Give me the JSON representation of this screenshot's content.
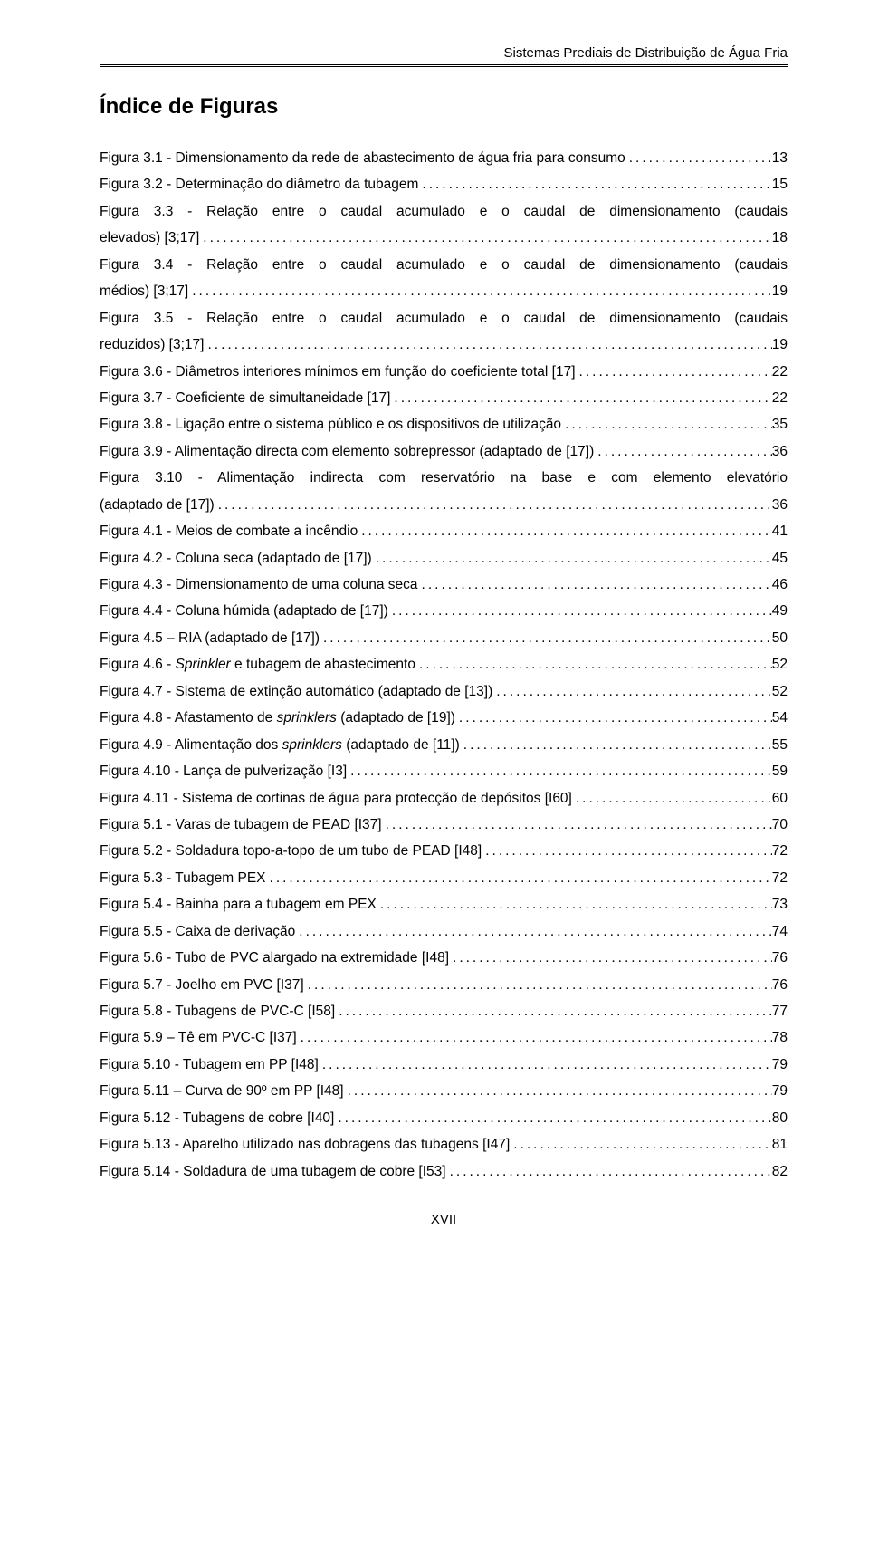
{
  "header": {
    "running_title": "Sistemas Prediais de Distribuição de Água Fria"
  },
  "section": {
    "heading": "Índice de Figuras"
  },
  "toc": [
    {
      "label": "Figura 3.1 - Dimensionamento da rede de abastecimento de água fria para consumo",
      "page": "13"
    },
    {
      "label": "Figura 3.2 - Determinação do diâmetro da tubagem",
      "page": "15"
    },
    {
      "label": "Figura 3.4 - Relação entre o caudal acumulado e o caudal de dimensionamento (caudais médios) [3;17]",
      "page": "19",
      "wrap": {
        "line1": "Figura 3.3 - Relação entre o caudal acumulado e o caudal de dimensionamento (caudais",
        "line2_label": "elevados) [3;17]",
        "line2_page": "18"
      }
    },
    {
      "label": "",
      "page": "",
      "wrap": {
        "line1": "Figura 3.4 - Relação entre o caudal acumulado e o caudal de dimensionamento (caudais",
        "line2_label": "médios) [3;17]",
        "line2_page": "19"
      }
    },
    {
      "label": "",
      "page": "",
      "wrap": {
        "line1": "Figura 3.5 - Relação entre o caudal acumulado e o caudal de dimensionamento (caudais",
        "line2_label": "reduzidos) [3;17]",
        "line2_page": "19"
      }
    },
    {
      "label": "Figura 3.6 - Diâmetros interiores mínimos em função do coeficiente total [17]",
      "page": "22"
    },
    {
      "label": "Figura 3.7 - Coeficiente de simultaneidade [17]",
      "page": "22"
    },
    {
      "label": "Figura 3.8 - Ligação entre o sistema público e os dispositivos de utilização",
      "page": "35"
    },
    {
      "label": "Figura 3.9 - Alimentação directa com elemento sobrepressor (adaptado de [17])",
      "page": "36"
    },
    {
      "label": "",
      "page": "",
      "wrap": {
        "line1": "Figura 3.10 - Alimentação indirecta com reservatório na base e com elemento elevatório",
        "line2_label": "(adaptado de [17])",
        "line2_page": "36"
      }
    },
    {
      "label": "Figura 4.1 - Meios de combate a incêndio",
      "page": "41"
    },
    {
      "label": "Figura 4.2 - Coluna seca (adaptado de [17])",
      "page": "45"
    },
    {
      "label": "Figura 4.3 - Dimensionamento de uma coluna seca",
      "page": "46"
    },
    {
      "label": "Figura 4.4 - Coluna húmida (adaptado de [17])",
      "page": "49"
    },
    {
      "label": "Figura 4.5 – RIA (adaptado de [17])",
      "page": "50"
    },
    {
      "label_html": "Figura 4.6 - <i>Sprinkler</i> e tubagem de abastecimento",
      "label": "Figura 4.6 - Sprinkler e tubagem de abastecimento",
      "page": "52"
    },
    {
      "label": "Figura 4.7 - Sistema de extinção automático (adaptado de [13])",
      "page": "52"
    },
    {
      "label_html": "Figura 4.8 - Afastamento de <i>sprinklers</i> (adaptado de [19])",
      "label": "Figura 4.8 - Afastamento de sprinklers (adaptado de [19])",
      "page": "54"
    },
    {
      "label_html": "Figura 4.9 - Alimentação dos <i>sprinklers</i> (adaptado de [11])",
      "label": "Figura 4.9 - Alimentação dos sprinklers (adaptado de [11])",
      "page": "55"
    },
    {
      "label": "Figura 4.10 - Lança de pulverização [I3]",
      "page": "59"
    },
    {
      "label": "Figura 4.11 - Sistema de cortinas de água para protecção de depósitos [I60]",
      "page": "60"
    },
    {
      "label": "Figura 5.1 - Varas de tubagem de PEAD [I37]",
      "page": "70"
    },
    {
      "label": "Figura 5.2 - Soldadura topo-a-topo de um tubo de PEAD [I48]",
      "page": "72"
    },
    {
      "label": "Figura 5.3 - Tubagem PEX",
      "page": "72"
    },
    {
      "label": "Figura 5.4 - Bainha para a tubagem em PEX",
      "page": "73"
    },
    {
      "label": "Figura 5.5 - Caixa de derivação",
      "page": "74"
    },
    {
      "label": "Figura 5.6 - Tubo de PVC alargado na extremidade [I48]",
      "page": "76"
    },
    {
      "label": "Figura 5.7 - Joelho em PVC [I37]",
      "page": "76"
    },
    {
      "label": "Figura 5.8 - Tubagens de PVC-C [I58]",
      "page": "77"
    },
    {
      "label": "Figura 5.9 – Tê em PVC-C [I37]",
      "page": "78"
    },
    {
      "label": "Figura 5.10 - Tubagem em PP [I48]",
      "page": "79"
    },
    {
      "label": "Figura 5.11 – Curva de 90º em PP [I48]",
      "page": "79"
    },
    {
      "label": "Figura 5.12 - Tubagens de cobre [I40]",
      "page": "80"
    },
    {
      "label": "Figura 5.13 - Aparelho utilizado nas dobragens das tubagens [I47]",
      "page": "81"
    },
    {
      "label": "Figura 5.14 - Soldadura de uma tubagem de cobre [I53]",
      "page": "82"
    }
  ],
  "footer": {
    "page_number": "XVII"
  },
  "style": {
    "background_color": "#ffffff",
    "text_color": "#000000",
    "font_family": "Arial",
    "body_fontsize_pt": 12,
    "heading_fontsize_pt": 18,
    "line_height": 1.9
  }
}
